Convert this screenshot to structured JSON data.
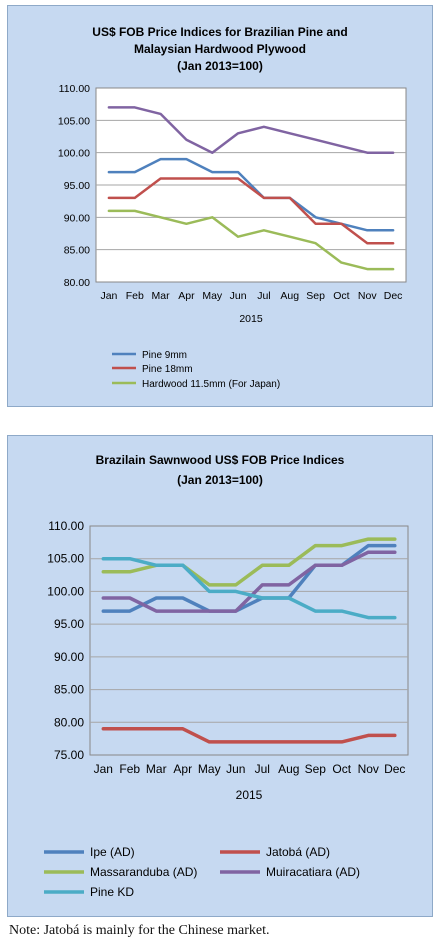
{
  "chart_data": [
    {
      "type": "line",
      "title": [
        "US$ FOB Price Indices for Brazilian Pine and",
        "Malaysian Hardwood Plywood",
        "(Jan 2013=100)"
      ],
      "xlabel": "2015",
      "categories": [
        "Jan",
        "Feb",
        "Mar",
        "Apr",
        "May",
        "Jun",
        "Jul",
        "Aug",
        "Sep",
        "Oct",
        "Nov",
        "Dec"
      ],
      "yticks": [
        "80.00",
        "85.00",
        "90.00",
        "95.00",
        "100.00",
        "105.00",
        "110.00"
      ],
      "ylim": [
        80,
        110
      ],
      "grid": true,
      "legend_position": "bottom",
      "series": [
        {
          "name": "Pine 9mm",
          "color": "#4f81bd",
          "values": [
            97,
            97,
            99,
            99,
            97,
            97,
            93,
            93,
            90,
            89,
            88,
            88
          ]
        },
        {
          "name": "Pine 18mm",
          "color": "#c0504d",
          "values": [
            93,
            93,
            96,
            96,
            96,
            96,
            93,
            93,
            89,
            89,
            86,
            86
          ]
        },
        {
          "name": "Hardwood 11.5mm (For Japan)",
          "color": "#9bbb59",
          "values": [
            91,
            91,
            90,
            89,
            90,
            87,
            88,
            87,
            86,
            83,
            82,
            82
          ]
        },
        {
          "name": "",
          "color": "#8064a2",
          "values": [
            107,
            107,
            106,
            102,
            100,
            103,
            104,
            103,
            102,
            101,
            100,
            100
          ]
        }
      ]
    },
    {
      "type": "line",
      "title": [
        "Brazilain Sawnwood US$ FOB Price Indices",
        "(Jan 2013=100)"
      ],
      "xlabel": "2015",
      "categories": [
        "Jan",
        "Feb",
        "Mar",
        "Apr",
        "May",
        "Jun",
        "Jul",
        "Aug",
        "Sep",
        "Oct",
        "Nov",
        "Dec"
      ],
      "yticks": [
        "75.00",
        "80.00",
        "85.00",
        "90.00",
        "95.00",
        "100.00",
        "105.00",
        "110.00"
      ],
      "ylim": [
        75,
        110
      ],
      "grid": true,
      "legend_position": "bottom",
      "series": [
        {
          "name": "Ipe (AD)",
          "color": "#4f81bd",
          "values": [
            97,
            97,
            99,
            99,
            97,
            97,
            99,
            99,
            104,
            104,
            107,
            107
          ]
        },
        {
          "name": "Jatobá (AD)",
          "color": "#c0504d",
          "values": [
            79,
            79,
            79,
            79,
            77,
            77,
            77,
            77,
            77,
            77,
            78,
            78
          ]
        },
        {
          "name": "Massaranduba (AD)",
          "color": "#9bbb59",
          "values": [
            103,
            103,
            104,
            104,
            101,
            101,
            104,
            104,
            107,
            107,
            108,
            108
          ]
        },
        {
          "name": "Muiracatiara (AD)",
          "color": "#8064a2",
          "values": [
            99,
            99,
            97,
            97,
            97,
            97,
            101,
            101,
            104,
            104,
            106,
            106
          ]
        },
        {
          "name": "Pine KD",
          "color": "#4bacc6",
          "values": [
            105,
            105,
            104,
            104,
            100,
            100,
            99,
            99,
            97,
            97,
            96,
            96
          ]
        }
      ]
    }
  ],
  "note": "Note: Jatobá is mainly for the Chinese market."
}
